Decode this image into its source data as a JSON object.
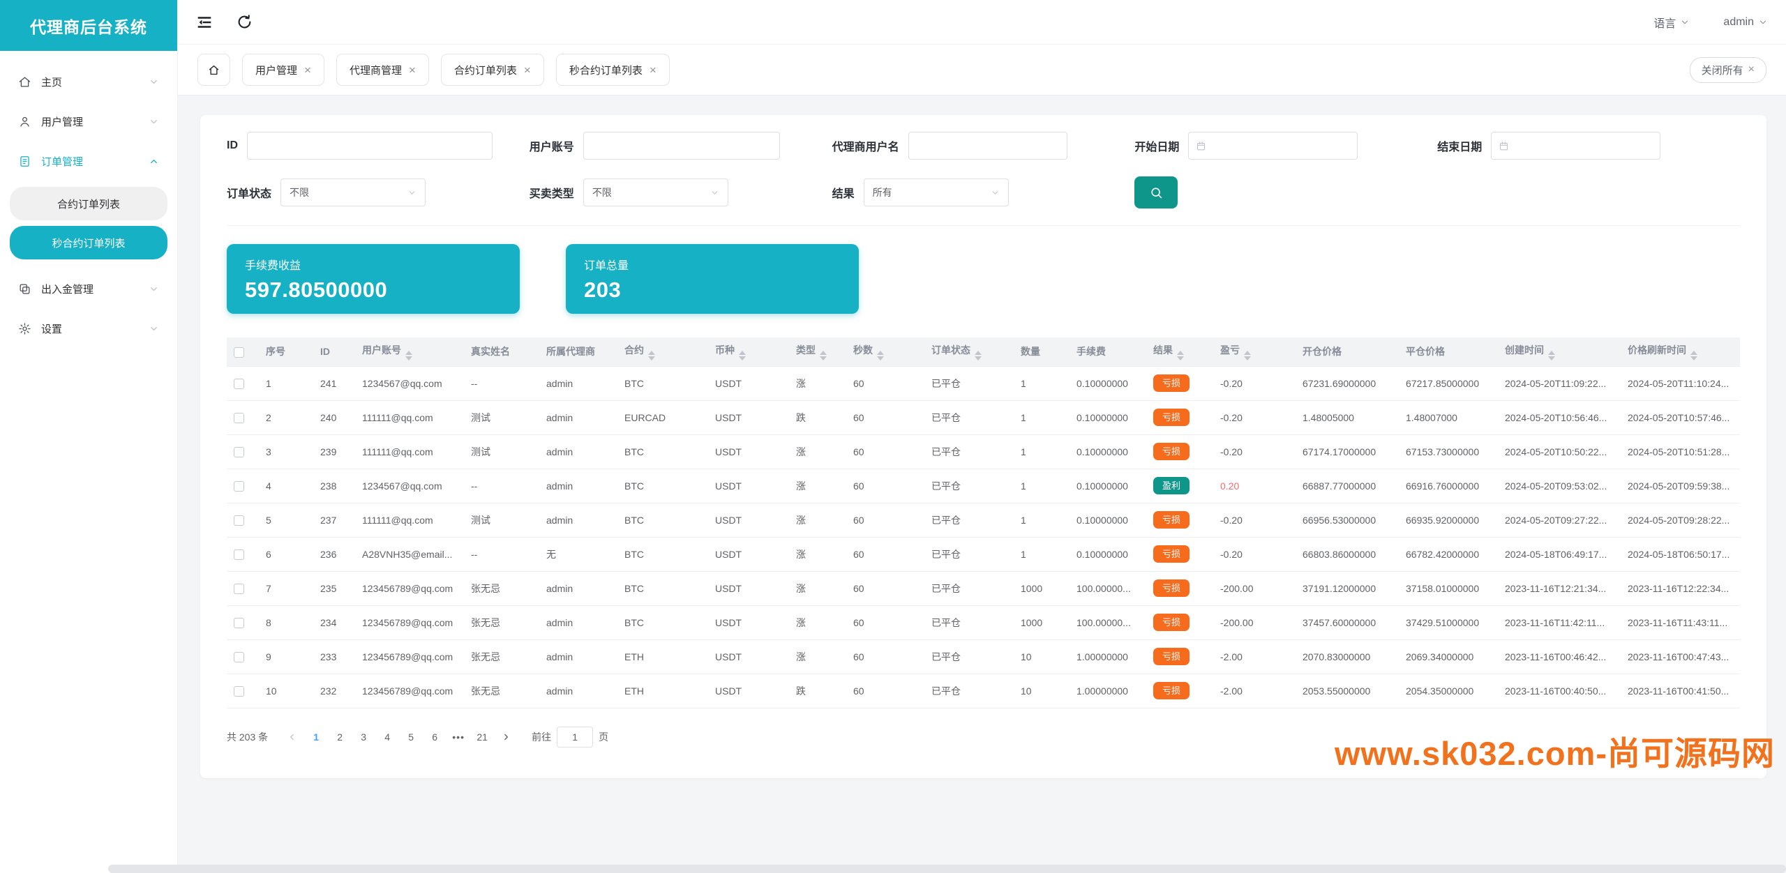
{
  "app": {
    "title": "代理商后台系统"
  },
  "header": {
    "language_label": "语言",
    "user_label": "admin"
  },
  "sidebar": {
    "items": [
      {
        "label": "主页",
        "icon": "home-icon"
      },
      {
        "label": "用户管理",
        "icon": "user-icon"
      },
      {
        "label": "订单管理",
        "icon": "document-icon",
        "expanded": true,
        "active": true,
        "children": [
          {
            "label": "合约订单列表",
            "active": false
          },
          {
            "label": "秒合约订单列表",
            "active": true
          }
        ]
      },
      {
        "label": "出入金管理",
        "icon": "copy-icon"
      },
      {
        "label": "设置",
        "icon": "gear-icon"
      }
    ]
  },
  "tabs": {
    "items": [
      "用户管理",
      "代理商管理",
      "合约订单列表",
      "秒合约订单列表"
    ],
    "close_all_label": "关闭所有"
  },
  "filters": {
    "id_label": "ID",
    "account_label": "用户账号",
    "agent_label": "代理商用户名",
    "start_date_label": "开始日期",
    "end_date_label": "结束日期",
    "order_status_label": "订单状态",
    "order_status_value": "不限",
    "trade_type_label": "买卖类型",
    "trade_type_value": "不限",
    "result_label": "结果",
    "result_value": "所有"
  },
  "stats": [
    {
      "label": "手续费收益",
      "value": "597.80500000"
    },
    {
      "label": "订单总量",
      "value": "203"
    }
  ],
  "table": {
    "columns": [
      {
        "label": "序号",
        "sortable": false
      },
      {
        "label": "ID",
        "sortable": false
      },
      {
        "label": "用户账号",
        "sortable": true
      },
      {
        "label": "真实姓名",
        "sortable": false
      },
      {
        "label": "所属代理商",
        "sortable": false
      },
      {
        "label": "合约",
        "sortable": true
      },
      {
        "label": "币种",
        "sortable": true
      },
      {
        "label": "类型",
        "sortable": true
      },
      {
        "label": "秒数",
        "sortable": true
      },
      {
        "label": "订单状态",
        "sortable": true
      },
      {
        "label": "数量",
        "sortable": false
      },
      {
        "label": "手续费",
        "sortable": false
      },
      {
        "label": "结果",
        "sortable": true
      },
      {
        "label": "盈亏",
        "sortable": true
      },
      {
        "label": "开仓价格",
        "sortable": false
      },
      {
        "label": "平仓价格",
        "sortable": false
      },
      {
        "label": "创建时间",
        "sortable": true
      },
      {
        "label": "价格刷新时间",
        "sortable": true
      }
    ],
    "rows": [
      {
        "seq": "1",
        "id": "241",
        "account": "1234567@qq.com",
        "real_name": "--",
        "agent": "admin",
        "contract": "BTC",
        "coin": "USDT",
        "type": "涨",
        "seconds": "60",
        "status": "已平仓",
        "qty": "1",
        "fee": "0.10000000",
        "result": "亏损",
        "pnl": "-0.20",
        "open_price": "67231.69000000",
        "close_price": "67217.85000000",
        "created": "2024-05-20T11:09:22...",
        "refreshed": "2024-05-20T11:10:24..."
      },
      {
        "seq": "2",
        "id": "240",
        "account": "111111@qq.com",
        "real_name": "测试",
        "agent": "admin",
        "contract": "EURCAD",
        "coin": "USDT",
        "type": "跌",
        "seconds": "60",
        "status": "已平仓",
        "qty": "1",
        "fee": "0.10000000",
        "result": "亏损",
        "pnl": "-0.20",
        "open_price": "1.48005000",
        "close_price": "1.48007000",
        "created": "2024-05-20T10:56:46...",
        "refreshed": "2024-05-20T10:57:46..."
      },
      {
        "seq": "3",
        "id": "239",
        "account": "111111@qq.com",
        "real_name": "测试",
        "agent": "admin",
        "contract": "BTC",
        "coin": "USDT",
        "type": "涨",
        "seconds": "60",
        "status": "已平仓",
        "qty": "1",
        "fee": "0.10000000",
        "result": "亏损",
        "pnl": "-0.20",
        "open_price": "67174.17000000",
        "close_price": "67153.73000000",
        "created": "2024-05-20T10:50:22...",
        "refreshed": "2024-05-20T10:51:28..."
      },
      {
        "seq": "4",
        "id": "238",
        "account": "1234567@qq.com",
        "real_name": "--",
        "agent": "admin",
        "contract": "BTC",
        "coin": "USDT",
        "type": "涨",
        "seconds": "60",
        "status": "已平仓",
        "qty": "1",
        "fee": "0.10000000",
        "result": "盈利",
        "pnl": "0.20",
        "open_price": "66887.77000000",
        "close_price": "66916.76000000",
        "created": "2024-05-20T09:53:02...",
        "refreshed": "2024-05-20T09:59:38..."
      },
      {
        "seq": "5",
        "id": "237",
        "account": "111111@qq.com",
        "real_name": "测试",
        "agent": "admin",
        "contract": "BTC",
        "coin": "USDT",
        "type": "涨",
        "seconds": "60",
        "status": "已平仓",
        "qty": "1",
        "fee": "0.10000000",
        "result": "亏损",
        "pnl": "-0.20",
        "open_price": "66956.53000000",
        "close_price": "66935.92000000",
        "created": "2024-05-20T09:27:22...",
        "refreshed": "2024-05-20T09:28:22..."
      },
      {
        "seq": "6",
        "id": "236",
        "account": "A28VNH35@email...",
        "real_name": "--",
        "agent": "无",
        "contract": "BTC",
        "coin": "USDT",
        "type": "涨",
        "seconds": "60",
        "status": "已平仓",
        "qty": "1",
        "fee": "0.10000000",
        "result": "亏损",
        "pnl": "-0.20",
        "open_price": "66803.86000000",
        "close_price": "66782.42000000",
        "created": "2024-05-18T06:49:17...",
        "refreshed": "2024-05-18T06:50:17..."
      },
      {
        "seq": "7",
        "id": "235",
        "account": "123456789@qq.com",
        "real_name": "张无忌",
        "agent": "admin",
        "contract": "BTC",
        "coin": "USDT",
        "type": "涨",
        "seconds": "60",
        "status": "已平仓",
        "qty": "1000",
        "fee": "100.00000...",
        "result": "亏损",
        "pnl": "-200.00",
        "open_price": "37191.12000000",
        "close_price": "37158.01000000",
        "created": "2023-11-16T12:21:34...",
        "refreshed": "2023-11-16T12:22:34..."
      },
      {
        "seq": "8",
        "id": "234",
        "account": "123456789@qq.com",
        "real_name": "张无忌",
        "agent": "admin",
        "contract": "BTC",
        "coin": "USDT",
        "type": "涨",
        "seconds": "60",
        "status": "已平仓",
        "qty": "1000",
        "fee": "100.00000...",
        "result": "亏损",
        "pnl": "-200.00",
        "open_price": "37457.60000000",
        "close_price": "37429.51000000",
        "created": "2023-11-16T11:42:11...",
        "refreshed": "2023-11-16T11:43:11..."
      },
      {
        "seq": "9",
        "id": "233",
        "account": "123456789@qq.com",
        "real_name": "张无忌",
        "agent": "admin",
        "contract": "ETH",
        "coin": "USDT",
        "type": "涨",
        "seconds": "60",
        "status": "已平仓",
        "qty": "10",
        "fee": "1.00000000",
        "result": "亏损",
        "pnl": "-2.00",
        "open_price": "2070.83000000",
        "close_price": "2069.34000000",
        "created": "2023-11-16T00:46:42...",
        "refreshed": "2023-11-16T00:47:43..."
      },
      {
        "seq": "10",
        "id": "232",
        "account": "123456789@qq.com",
        "real_name": "张无忌",
        "agent": "admin",
        "contract": "ETH",
        "coin": "USDT",
        "type": "跌",
        "seconds": "60",
        "status": "已平仓",
        "qty": "10",
        "fee": "1.00000000",
        "result": "亏损",
        "pnl": "-2.00",
        "open_price": "2053.55000000",
        "close_price": "2054.35000000",
        "created": "2023-11-16T00:40:50...",
        "refreshed": "2023-11-16T00:41:50..."
      }
    ]
  },
  "pagination": {
    "total_label": "共 203 条",
    "pages": [
      "1",
      "2",
      "3",
      "4",
      "5",
      "6",
      "•••",
      "21"
    ],
    "active_page": "1",
    "goto_label": "前往",
    "goto_value": "1",
    "page_suffix_label": "页"
  },
  "watermark": "www.sk032.com-尚可源码网",
  "colors": {
    "brand_teal": "#17b1c5",
    "search_green": "#0f968a",
    "badge_loss_orange": "#f76b1c",
    "badge_profit_green": "#0f968a",
    "profit_red": "#f56c6c",
    "page_active_blue": "#409eff",
    "watermark_orange": "#f1711c"
  }
}
